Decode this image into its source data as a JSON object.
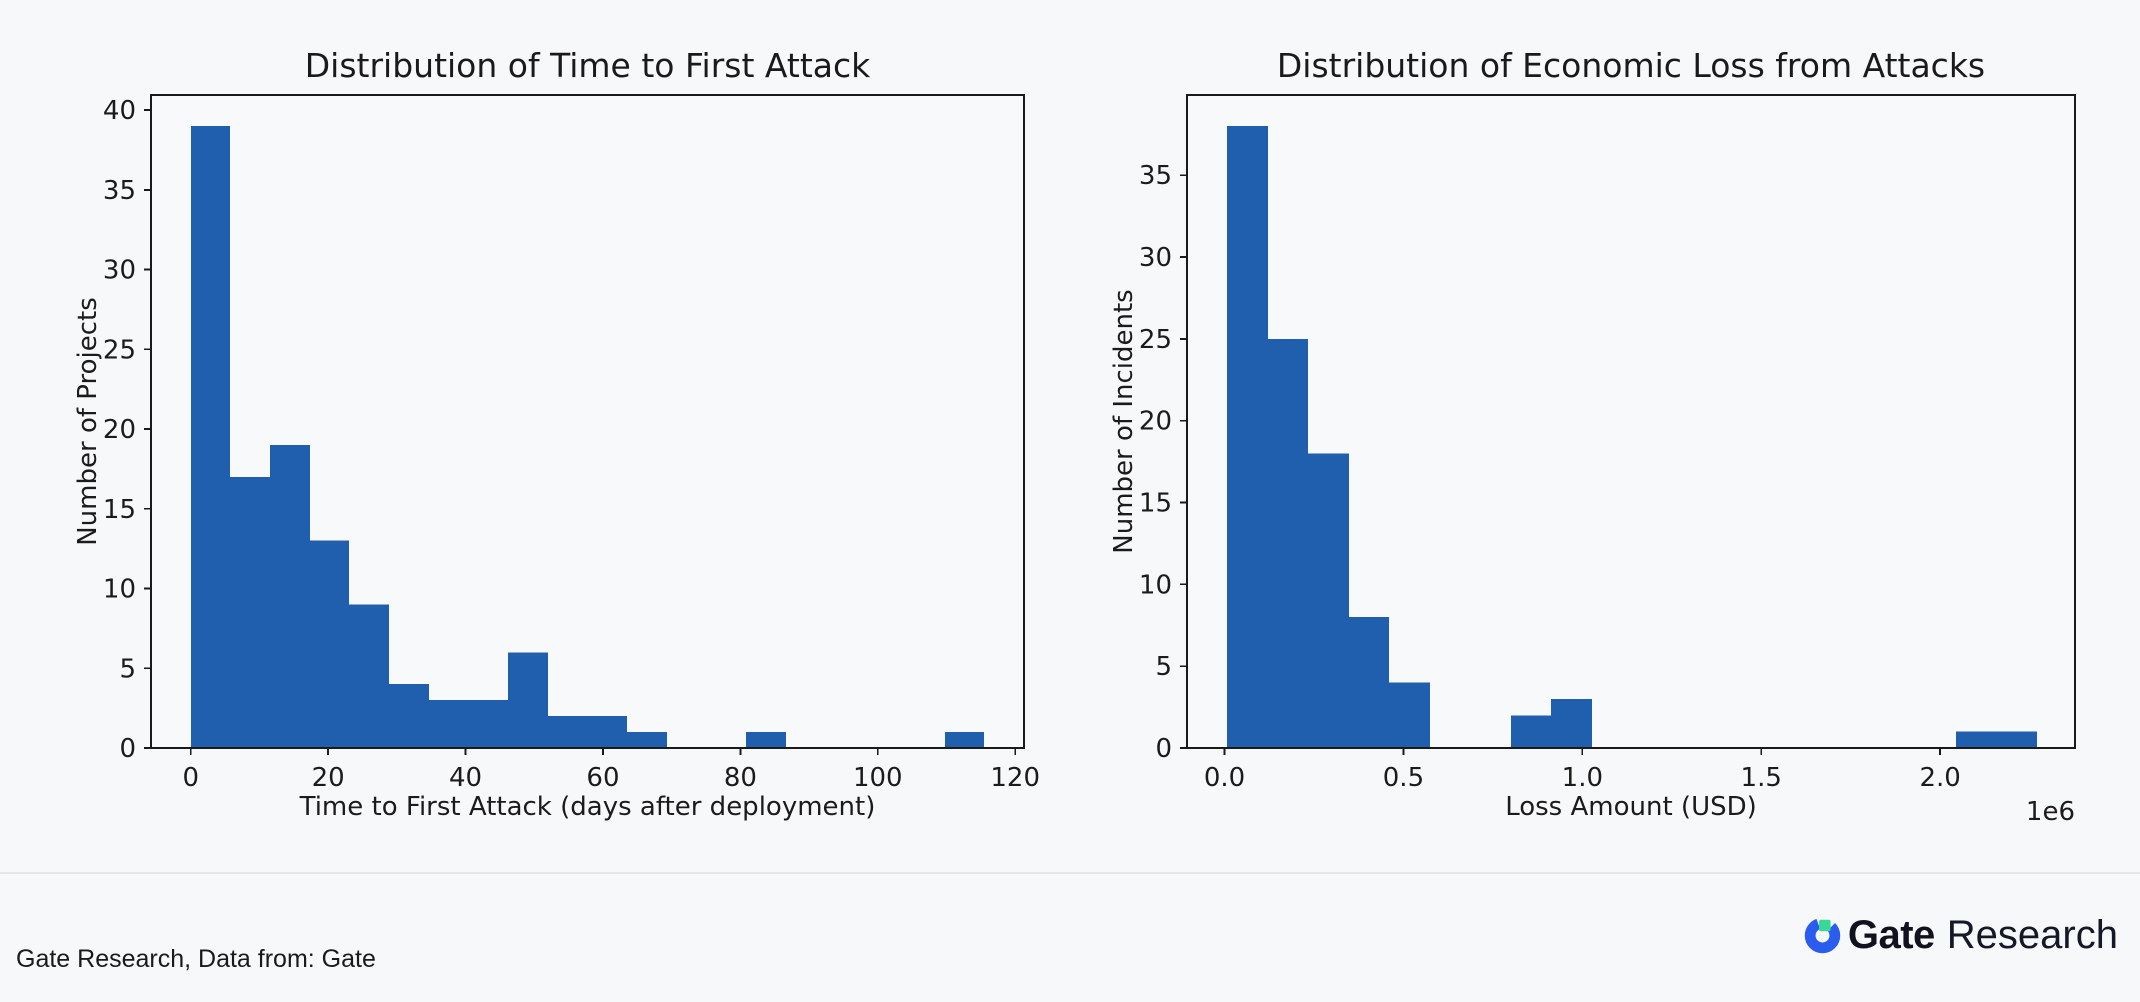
{
  "page": {
    "background": "#f7f8fa"
  },
  "style": {
    "bar_color": "#1f5fad",
    "axis_color": "#1a1a1a",
    "text_color": "#1b1b1b",
    "plot_bg": "#f8f9fb",
    "divider_color": "#e5e6e9"
  },
  "chart_data": [
    {
      "type": "bar",
      "subtype": "histogram",
      "title": "Distribution of Time to First Attack",
      "xlabel": "Time to First Attack (days after deployment)",
      "ylabel": "Number of Projects",
      "bin_start": 0,
      "bin_width": 5.775,
      "bin_counts": [
        39,
        17,
        19,
        13,
        9,
        4,
        3,
        3,
        6,
        2,
        2,
        1,
        0,
        0,
        1,
        0,
        0,
        0,
        0,
        1
      ],
      "xlim": [
        -5.78,
        121.28
      ],
      "ylim": [
        0,
        40.95
      ],
      "xticks": [
        0,
        20,
        40,
        60,
        80,
        100,
        120
      ],
      "xtick_labels": [
        "0",
        "20",
        "40",
        "60",
        "80",
        "100",
        "120"
      ],
      "yticks": [
        0,
        5,
        10,
        15,
        20,
        25,
        30,
        35,
        40
      ],
      "ytick_labels": [
        "0",
        "5",
        "10",
        "15",
        "20",
        "25",
        "30",
        "35",
        "40"
      ],
      "offset_text": "",
      "grid": "off",
      "legend": "none"
    },
    {
      "type": "bar",
      "subtype": "histogram",
      "title": "Distribution of Economic Loss from Attacks",
      "xlabel": "Loss Amount (USD)",
      "ylabel": "Number of Incidents",
      "bin_start": 0.008,
      "bin_width": 0.1132,
      "bin_counts": [
        38,
        25,
        18,
        8,
        4,
        0,
        0,
        2,
        3,
        0,
        0,
        0,
        0,
        0,
        0,
        0,
        0,
        0,
        1,
        1
      ],
      "xlim": [
        -0.105,
        2.377
      ],
      "ylim": [
        0,
        39.9
      ],
      "xticks": [
        0.0,
        0.5,
        1.0,
        1.5,
        2.0
      ],
      "xtick_labels": [
        "0.0",
        "0.5",
        "1.0",
        "1.5",
        "2.0"
      ],
      "yticks": [
        0,
        5,
        10,
        15,
        20,
        25,
        30,
        35
      ],
      "ytick_labels": [
        "0",
        "5",
        "10",
        "15",
        "20",
        "25",
        "30",
        "35"
      ],
      "offset_text": "1e6",
      "grid": "off",
      "legend": "none"
    }
  ],
  "footer": {
    "source_text": "Gate Research, Data from: Gate",
    "logo": {
      "brand_bold": "Gate",
      "brand_light": "Research",
      "mark_blue": "#2b5cf0",
      "mark_green": "#38d996"
    }
  }
}
